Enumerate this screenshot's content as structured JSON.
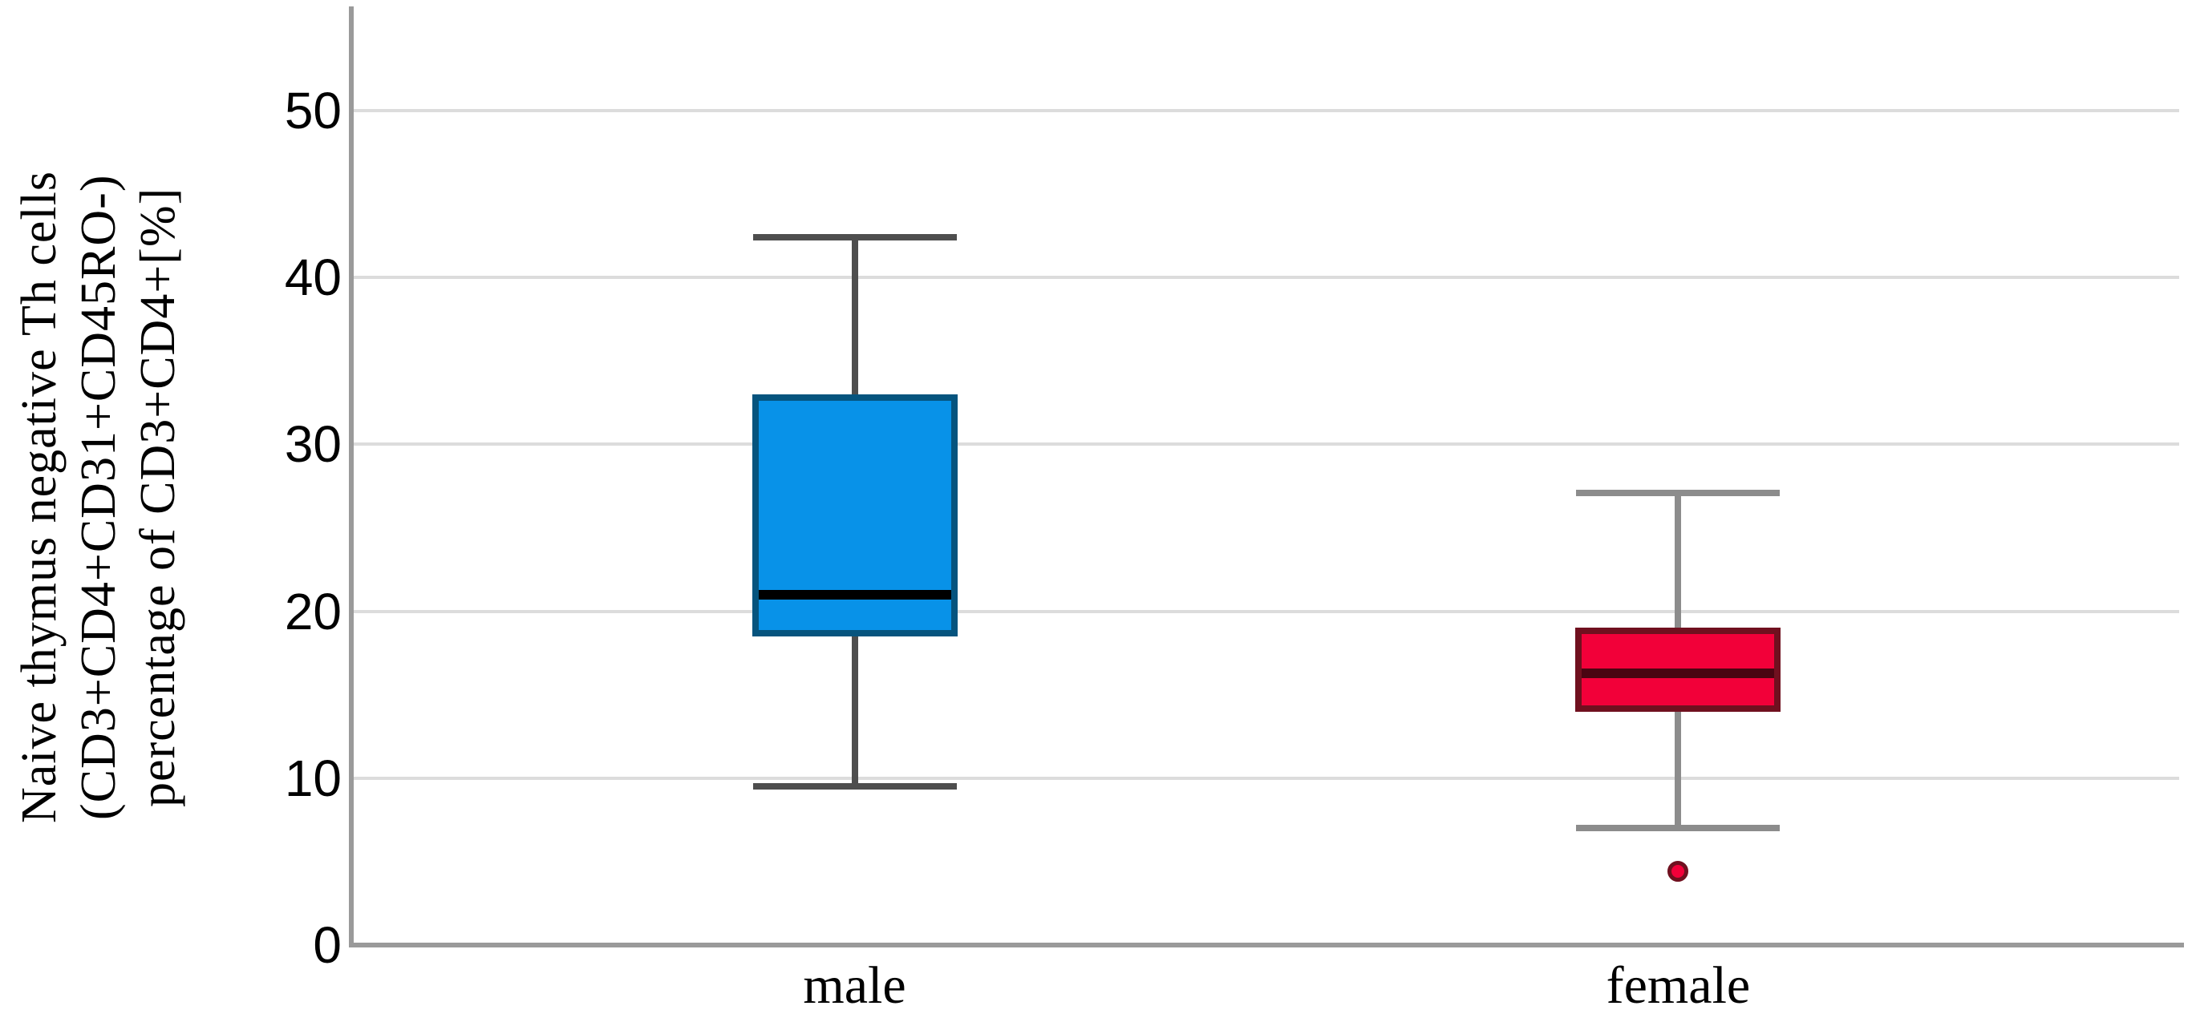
{
  "figure": {
    "y_axis": {
      "title_lines": [
        "Naive thymus negative Th cells",
        "(CD3+CD4+CD31+CD45RO-)",
        "percentage of CD3+CD4+[%]"
      ]
    }
  },
  "chart_data": {
    "type": "boxplot",
    "title": "",
    "ylabel": "Naive thymus negative Th cells (CD3+CD4+CD31+CD45RO-) percentage of CD3+CD4+ [%]",
    "xlabel": "",
    "categories": [
      "male",
      "female"
    ],
    "ylim": [
      0,
      56
    ],
    "yticks": [
      0,
      10,
      20,
      30,
      40,
      50
    ],
    "grid": true,
    "legend": "none",
    "series": [
      {
        "name": "male",
        "whisker_low": 9.5,
        "q1": 18.5,
        "median": 21.0,
        "q3": 33.0,
        "whisker_high": 42.4,
        "outliers": [],
        "fill_color": "#0892E8",
        "border_color": "#06547E",
        "median_color": "#000000",
        "whisker_color": "#4E4E4E"
      },
      {
        "name": "female",
        "whisker_low": 7.0,
        "q1": 14.0,
        "median": 16.3,
        "q3": 19.0,
        "whisker_high": 27.1,
        "outliers": [
          4.4
        ],
        "fill_color": "#F20039",
        "border_color": "#70101F",
        "median_color": "#4A0512",
        "whisker_color": "#8C8C8C"
      }
    ],
    "colors": {
      "gridline": "#DCDCDC",
      "axis": "#9A9A9A",
      "text": "#000000",
      "background": "#FFFFFF"
    }
  }
}
